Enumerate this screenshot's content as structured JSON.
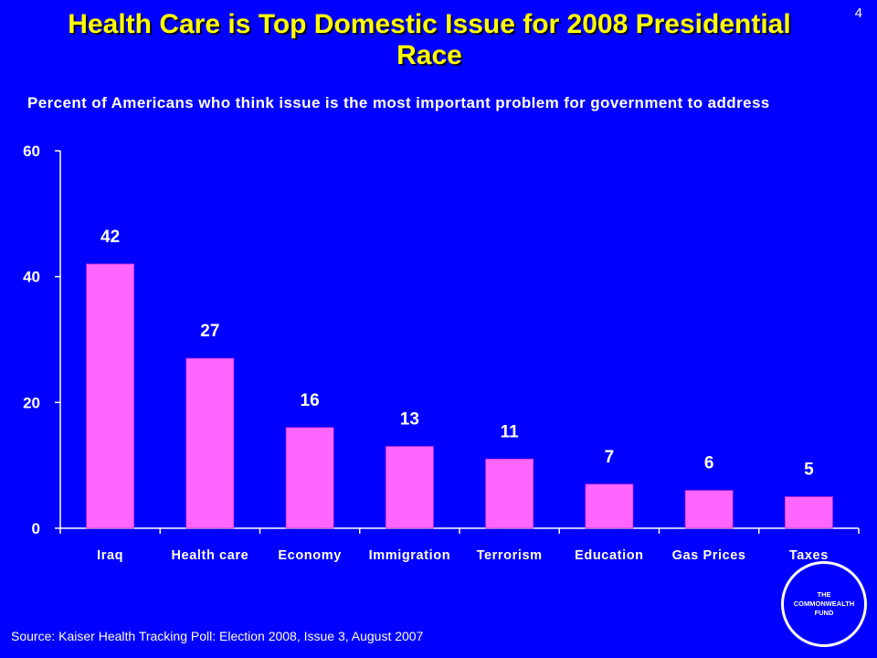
{
  "slide": {
    "page_number": "4",
    "title": "Health Care is Top Domestic Issue for 2008 Presidential Race",
    "subtitle": "Percent of Americans who think issue is the most important problem for government to address",
    "source": "Source: Kaiser Health Tracking Poll: Election 2008, Issue 3, August 2007",
    "logo_text": "THE\nCOMMONWEALTH\nFUND"
  },
  "colors": {
    "background": "#0000FF",
    "title": "#FFFF00",
    "bar_fill": "#FF66FF",
    "axis": "#ffffff",
    "text": "#ffffff"
  },
  "chart_data": {
    "type": "bar",
    "categories": [
      "Iraq",
      "Health care",
      "Economy",
      "Immigration",
      "Terrorism",
      "Education",
      "Gas Prices",
      "Taxes"
    ],
    "values": [
      42,
      27,
      16,
      13,
      11,
      7,
      6,
      5
    ],
    "data_labels": [
      "42",
      "27",
      "16",
      "13",
      "11",
      "7",
      "6",
      "5"
    ],
    "ylim": [
      0,
      60
    ],
    "yticks": [
      0,
      20,
      40,
      60
    ],
    "grid": false,
    "legend": "none"
  }
}
